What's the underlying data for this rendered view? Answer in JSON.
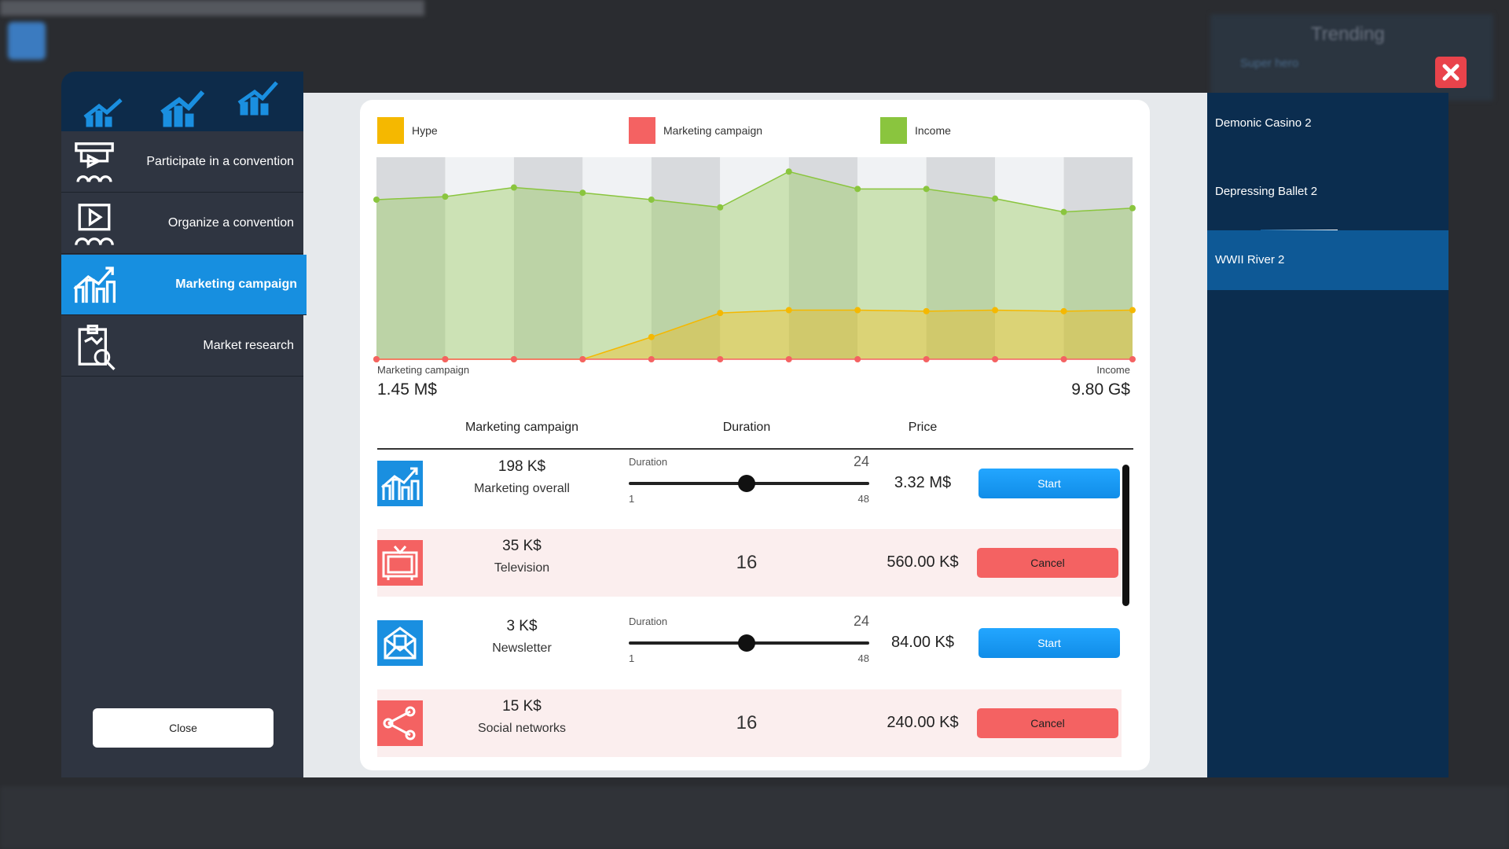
{
  "background": {
    "trending": "Trending",
    "trending_item": "Super hero"
  },
  "sidebar": {
    "items": [
      "Participate in a convention",
      "Organize a convention",
      "Marketing campaign",
      "Market research"
    ],
    "selected": 2,
    "close": "Close"
  },
  "chart_data": {
    "type": "area",
    "series": [
      {
        "name": "Hype",
        "color": "#f5b800",
        "values": [
          0,
          0,
          0,
          0,
          11,
          22.9,
          24.3,
          24.3,
          23.8,
          24.3,
          23.8,
          24.3
        ]
      },
      {
        "name": "Marketing campaign",
        "color": "#f46262",
        "values": [
          0,
          0,
          0,
          0,
          0,
          0,
          0,
          0,
          0,
          0,
          0,
          0
        ]
      },
      {
        "name": "Income",
        "color": "#8ac53e",
        "values": [
          79,
          80.5,
          85,
          82.4,
          79,
          75.2,
          92.9,
          84.3,
          84.3,
          79.5,
          72.9,
          74.8
        ]
      }
    ],
    "ylim": [
      0,
      100
    ]
  },
  "totals": {
    "left_label": "Marketing campaign",
    "left_value": "1.45 M$",
    "right_label": "Income",
    "right_value": "9.80 G$"
  },
  "table": {
    "headers": [
      "Marketing campaign",
      "Duration",
      "Price"
    ],
    "rows": [
      {
        "cost": "198 K$",
        "name": "Marketing overall",
        "duration_label": "Duration",
        "duration": 24,
        "min": 1,
        "max": 48,
        "price": "3.32 M$",
        "action": "Start"
      },
      {
        "cost": "35 K$",
        "name": "Television",
        "duration": 16,
        "price": "560.00 K$",
        "action": "Cancel"
      },
      {
        "cost": "3 K$",
        "name": "Newsletter",
        "duration_label": "Duration",
        "duration": 24,
        "min": 1,
        "max": 48,
        "price": "84.00 K$",
        "action": "Start"
      },
      {
        "cost": "15 K$",
        "name": "Social networks",
        "duration": 16,
        "price": "240.00 K$",
        "action": "Cancel"
      }
    ]
  },
  "games": {
    "items": [
      "Demonic Casino 2",
      "Depressing Ballet 2",
      "WWII River 2"
    ],
    "selected": 2
  }
}
